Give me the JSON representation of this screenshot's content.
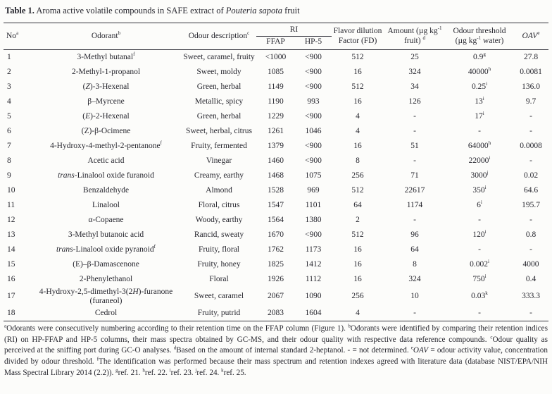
{
  "colors": {
    "text": "#26262e",
    "rule": "#33333b",
    "background": "#fcfcfa"
  },
  "caption": {
    "label": "Table 1.",
    "text": " Aroma active volatile compounds in SAFE extract of *Pouteria sapota* fruit"
  },
  "table": {
    "headers": {
      "no": "No^a^",
      "odorant": "Odorant^b^",
      "odour_description": "Odour description^c^",
      "ri_group": "RI",
      "ffap": "FFAP",
      "hp5": "HP-5",
      "fd": "Flavor dilution Factor (FD)",
      "amount": "Amount (µg kg^-1^ fruit) ^d^",
      "threshold": "Odour threshold (µg kg^-1^ water)",
      "oav": "*OAV*^e^"
    },
    "rows": [
      {
        "no": "1",
        "odorant": "3-Methyl butanal^f^",
        "odour_description": "Sweet, caramel, fruity",
        "ffap": "<1000",
        "hp5": "<900",
        "fd": "512",
        "amount": "25",
        "threshold": "0.9^g^",
        "oav": "27.8"
      },
      {
        "no": "2",
        "odorant": "2-Methyl-1-propanol",
        "odour_description": "Sweet, moldy",
        "ffap": "1085",
        "hp5": "<900",
        "fd": "16",
        "amount": "324",
        "threshold": "40000^h^",
        "oav": "0.0081"
      },
      {
        "no": "3",
        "odorant": "(*Z*)-3-Hexenal",
        "odour_description": "Green, herbal",
        "ffap": "1149",
        "hp5": "<900",
        "fd": "512",
        "amount": "34",
        "threshold": "0.25^i^",
        "oav": "136.0"
      },
      {
        "no": "4",
        "odorant": "β–Myrcene",
        "odour_description": "Metallic, spicy",
        "ffap": "1190",
        "hp5": "993",
        "fd": "16",
        "amount": "126",
        "threshold": "13^i^",
        "oav": "9.7"
      },
      {
        "no": "5",
        "odorant": "(*E*)-2-Hexenal",
        "odour_description": "Green, herbal",
        "ffap": "1229",
        "hp5": "<900",
        "fd": "4",
        "amount": "-",
        "threshold": "17^i^",
        "oav": "-"
      },
      {
        "no": "6",
        "odorant": "(Z)-β-Ocimene",
        "odour_description": "Sweet, herbal, citrus",
        "ffap": "1261",
        "hp5": "1046",
        "fd": "4",
        "amount": "-",
        "threshold": "-",
        "oav": "-"
      },
      {
        "no": "7",
        "odorant": "4-Hydroxy-4-methyl-2-pentanone^f^",
        "odour_description": "Fruity, fermented",
        "ffap": "1379",
        "hp5": "<900",
        "fd": "16",
        "amount": "51",
        "threshold": "64000^h^",
        "oav": "0.0008"
      },
      {
        "no": "8",
        "odorant": "Acetic acid",
        "odour_description": "Vinegar",
        "ffap": "1460",
        "hp5": "<900",
        "fd": "8",
        "amount": "-",
        "threshold": "22000^i^",
        "oav": "-"
      },
      {
        "no": "9",
        "odorant": "*trans*-Linalool oxide furanoid",
        "odour_description": "Creamy, earthy",
        "ffap": "1468",
        "hp5": "1075",
        "fd": "256",
        "amount": "71",
        "threshold": "3000^j^",
        "oav": "0.02"
      },
      {
        "no": "10",
        "odorant": "Benzaldehyde",
        "odour_description": "Almond",
        "ffap": "1528",
        "hp5": "969",
        "fd": "512",
        "amount": "22617",
        "threshold": "350^i^",
        "oav": "64.6"
      },
      {
        "no": "11",
        "odorant": "Linalool",
        "odour_description": "Floral, citrus",
        "ffap": "1547",
        "hp5": "1101",
        "fd": "64",
        "amount": "1174",
        "threshold": "6^i^",
        "oav": "195.7"
      },
      {
        "no": "12",
        "odorant": "α-Copaene",
        "odour_description": "Woody, earthy",
        "ffap": "1564",
        "hp5": "1380",
        "fd": "2",
        "amount": "-",
        "threshold": "-",
        "oav": "-"
      },
      {
        "no": "13",
        "odorant": "3-Methyl butanoic acid",
        "odour_description": "Rancid, sweaty",
        "ffap": "1670",
        "hp5": "<900",
        "fd": "512",
        "amount": "96",
        "threshold": "120^i^",
        "oav": "0.8"
      },
      {
        "no": "14",
        "odorant": "*trans*-Linalool oxide pyranoid^f^",
        "odour_description": "Fruity, floral",
        "ffap": "1762",
        "hp5": "1173",
        "fd": "16",
        "amount": "64",
        "threshold": "-",
        "oav": "-"
      },
      {
        "no": "15",
        "odorant": "(E)–β-Damascenone",
        "odour_description": "Fruity, honey",
        "ffap": "1825",
        "hp5": "1412",
        "fd": "16",
        "amount": "8",
        "threshold": "0.002^i^",
        "oav": "4000"
      },
      {
        "no": "16",
        "odorant": "2-Phenylethanol",
        "odour_description": "Floral",
        "ffap": "1926",
        "hp5": "1112",
        "fd": "16",
        "amount": "324",
        "threshold": "750^i^",
        "oav": "0.4"
      },
      {
        "no": "17",
        "odorant": "4-Hydroxy-2,5-dimethyl-3(2*H*)-furanone (furaneol)",
        "odour_description": "Sweet, caramel",
        "ffap": "2067",
        "hp5": "1090",
        "fd": "256",
        "amount": "10",
        "threshold": "0.03^k^",
        "oav": "333.3"
      },
      {
        "no": "18",
        "odorant": "Cedrol",
        "odour_description": "Fruity, putrid",
        "ffap": "2083",
        "hp5": "1604",
        "fd": "4",
        "amount": "-",
        "threshold": "-",
        "oav": "-"
      }
    ]
  },
  "footnotes": "^a^Odorants were consecutively numbering according to their retention time on the FFAP column (Figure 1). ^b^Odorants were identified by comparing their retention indices (RI) on HP-FFAP and HP-5 columns, their mass spectra obtained by GC-MS, and their odour quality with respective data reference compounds. ^c^Odour quality as perceived at the sniffing port during GC-O analyses. ^d^Based on the amount of internal standard 2-heptanol. - = not determined. ^e^*OAV* = odour activity value, concentration divided by odour threshold. ^f^The identification was performed because their mass spectrum and retention indexes agreed with literature data (database NIST/EPA/NIH Mass Spectral Library 2014 (2.2)). ^g^ref. 21. ^h^ref. 22. ^i^ref. 23. ^j^ref. 24. ^k^ref. 25."
}
